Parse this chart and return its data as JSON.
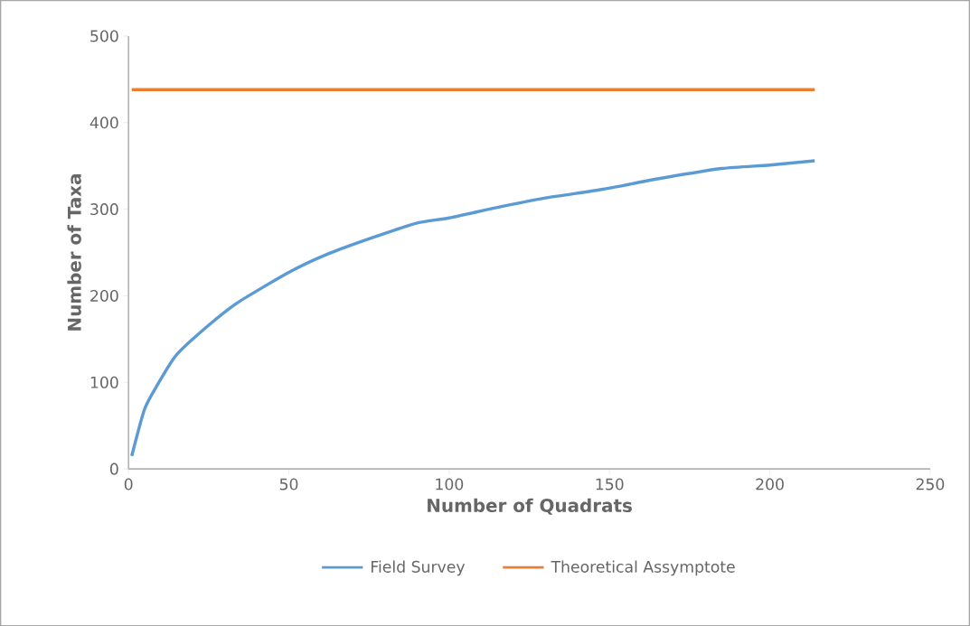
{
  "chart_data": {
    "type": "line",
    "xlabel": "Number of Quadrats",
    "ylabel": "Number of Taxa",
    "xlim": [
      0,
      250
    ],
    "ylim": [
      0,
      500
    ],
    "xticks": [
      0,
      50,
      100,
      150,
      200,
      250
    ],
    "yticks": [
      0,
      100,
      200,
      300,
      400,
      500
    ],
    "legend": "bottom",
    "grid": false,
    "marker": "none",
    "series": [
      {
        "name": "Field Survey",
        "color": "#5b9bd5",
        "x": [
          1,
          5,
          9,
          15,
          25,
          34,
          50,
          62,
          76,
          90,
          100,
          115,
          130,
          148,
          165,
          185,
          200,
          214
        ],
        "values": [
          15,
          69,
          97,
          132,
          166,
          192,
          227,
          248,
          267,
          284,
          290,
          302,
          313,
          323,
          335,
          347,
          351,
          356
        ]
      },
      {
        "name": "Theoretical Assymptote",
        "color": "#ed7d31",
        "x": [
          1,
          214
        ],
        "values": [
          438,
          438
        ]
      }
    ]
  }
}
